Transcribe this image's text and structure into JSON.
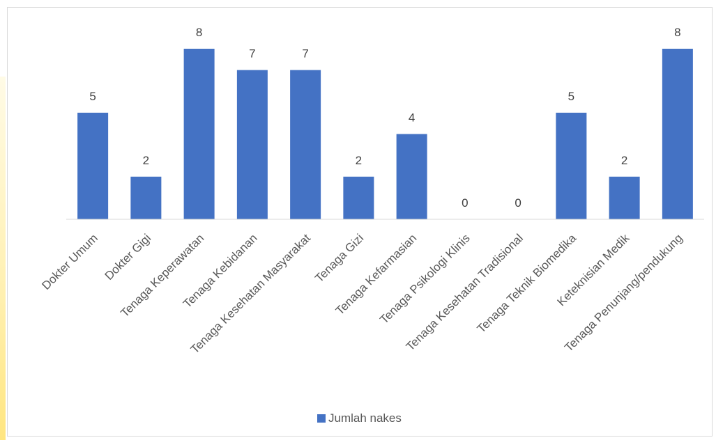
{
  "chart_data": {
    "type": "bar",
    "categories": [
      "Dokter Umum",
      "Dokter Gigi",
      "Tenaga Keperawatan",
      "Tenaga Kebidanan",
      "Tenaga Kesehatan Masyarakat",
      "Tenaga Gizi",
      "Tenaga Kefarmasian",
      "Tenaga Psikologi Klinis",
      "Tenaga Kesehatan Tradisional",
      "Tenaga Teknik Biomedika",
      "Keteknisian Medik",
      "Tenaga Penunjang/pendukung"
    ],
    "series": [
      {
        "name": "Jumlah nakes",
        "values": [
          5,
          2,
          8,
          7,
          7,
          2,
          4,
          0,
          0,
          5,
          2,
          8
        ],
        "color": "#4472c4"
      }
    ],
    "title": "",
    "xlabel": "",
    "ylabel": "",
    "ylim": [
      0,
      8
    ],
    "grid": false,
    "legend_position": "bottom",
    "data_labels": true
  }
}
